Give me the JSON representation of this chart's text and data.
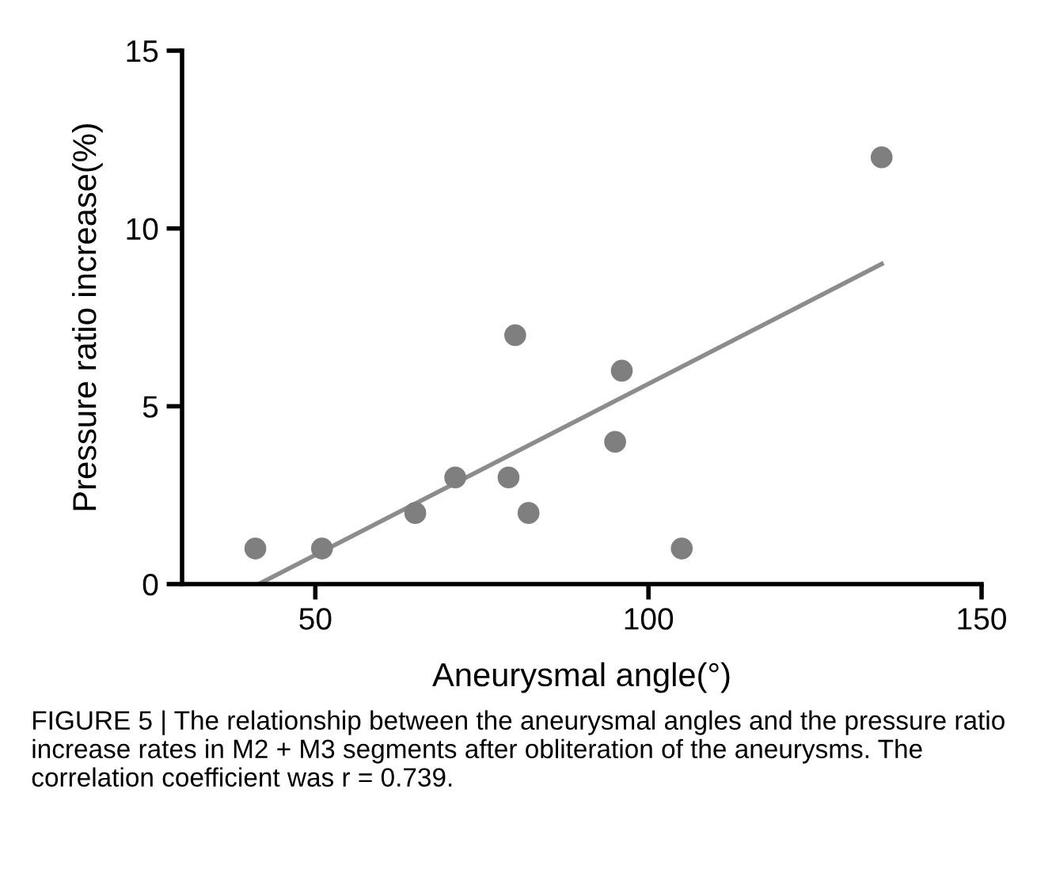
{
  "chart_data": {
    "type": "scatter",
    "xlabel": "Aneurysmal angle(°)",
    "ylabel": "Pressure ratio increase(%)",
    "xlim": [
      30,
      150
    ],
    "xticks": [
      50,
      100,
      150
    ],
    "ylim": [
      0,
      15
    ],
    "yticks": [
      0,
      5,
      10,
      15
    ],
    "grid": false,
    "series": [
      {
        "marker": "circle",
        "color": "#7f7f7f",
        "x": [
          41,
          51,
          65,
          71,
          79,
          80,
          82,
          95,
          96,
          105,
          135
        ],
        "values": [
          1,
          1,
          2,
          3,
          3,
          7,
          2,
          4,
          6,
          1,
          12
        ]
      },
      {
        "type": "line",
        "color": "#8c8c8c",
        "line_style": "solid",
        "marker": "none",
        "x": [
          41.5,
          135
        ],
        "values": [
          0,
          9
        ]
      }
    ],
    "annotations": [
      "FIGURE 5 | The relationship between the aneurysmal angles and the pressure ratio increase rates in M2 + M3 segments after obliteration of the aneurysms. The correlation coefficient was r = 0.739."
    ]
  }
}
